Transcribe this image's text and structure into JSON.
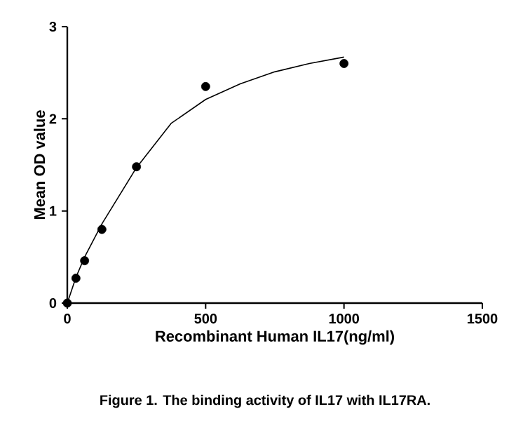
{
  "chart_data": {
    "type": "scatter",
    "xlabel": "Recombinant Human IL17(ng/ml)",
    "ylabel": "Mean OD value",
    "annotations": [
      "Figure 1. The binding activity of IL17 with IL17RA."
    ],
    "series": [
      {
        "color": "#000000",
        "marker": "circle",
        "x": [
          0,
          31.25,
          62.5,
          125,
          250,
          500,
          1000
        ],
        "values": [
          0,
          0.27,
          0.46,
          0.8,
          1.48,
          2.35,
          2.6
        ]
      },
      {
        "type": "line",
        "color": "#000000",
        "marker": "none",
        "x": [
          0,
          31.25,
          62.5,
          125,
          250,
          375,
          500,
          625,
          750,
          875,
          1000
        ],
        "values": [
          0,
          0.28,
          0.5,
          0.86,
          1.47,
          1.95,
          2.21,
          2.38,
          2.51,
          2.6,
          2.67
        ]
      }
    ],
    "xlim": [
      0,
      1500
    ],
    "xticks": [
      0,
      500,
      1000,
      1500
    ],
    "ylim": [
      0,
      3
    ],
    "yticks": [
      0,
      1,
      2,
      3
    ]
  }
}
